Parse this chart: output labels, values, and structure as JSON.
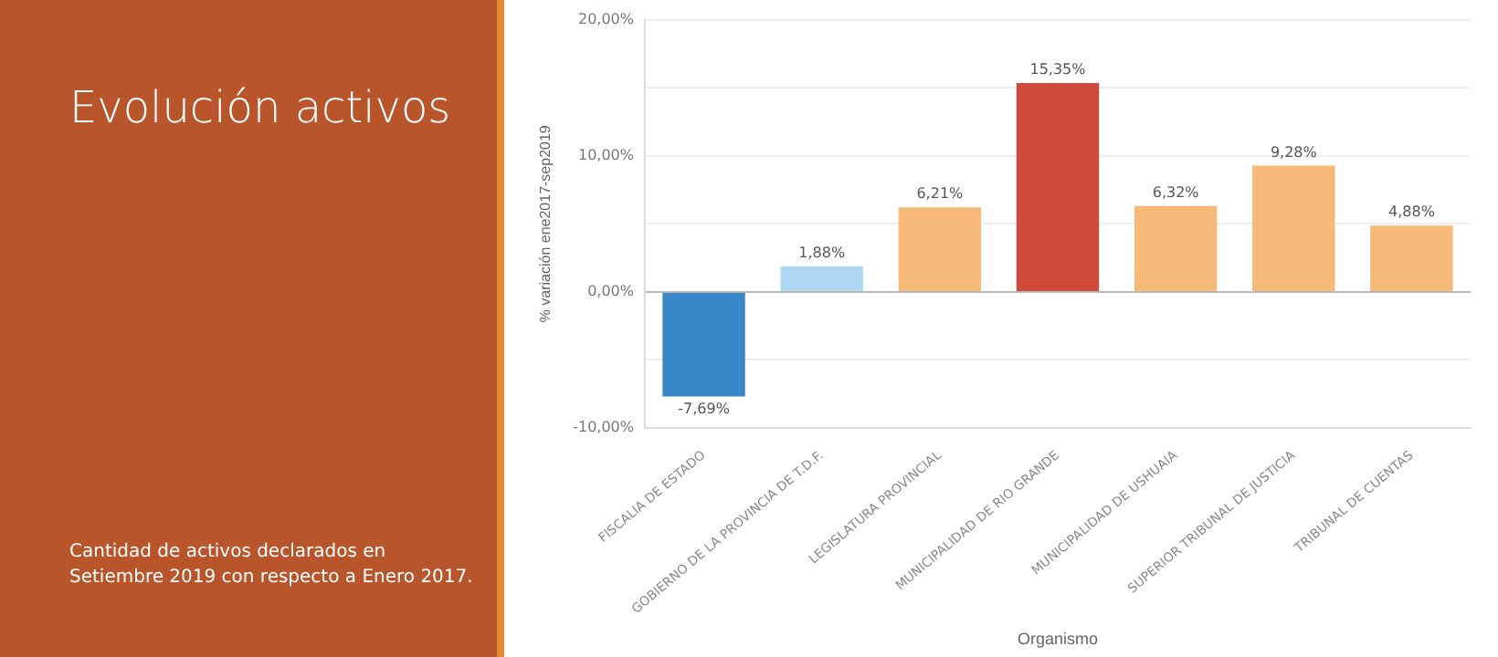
{
  "chart_data": {
    "type": "bar",
    "title": "Evolución activos",
    "annotations": [
      "Cantidad de activos declarados en Setiembre 2019 con respecto a Enero 2017."
    ],
    "xlabel": "Organismo",
    "ylabel": "% variación ene2017-sep2019",
    "categories": [
      "FISCALIA DE ESTADO",
      "GOBIERNO DE LA PROVINCIA DE T.D.F.",
      "LEGISLATURA PROVINCIAL",
      "MUNICIPALIDAD DE RIO GRANDE",
      "MUNICIPALIDAD DE USHUAIA",
      "SUPERIOR TRIBUNAL DE JUSTICIA",
      "TRIBUNAL DE CUENTAS"
    ],
    "values": [
      -7.69,
      1.88,
      6.21,
      15.35,
      6.32,
      9.28,
      4.88
    ],
    "colors": [
      "#3a87c8",
      "#aed8f2",
      "#f6b978",
      "#d04a3a",
      "#f6b978",
      "#f6b978",
      "#f6b978"
    ],
    "value_labels": [
      "-7,69%",
      "1,88%",
      "6,21%",
      "15,35%",
      "6,32%",
      "9,28%",
      "4,88%"
    ],
    "ylim": [
      -10,
      20
    ],
    "yticks": [
      {
        "value": -10,
        "label": "-10,00%"
      },
      {
        "value": -5,
        "label": null
      },
      {
        "value": 0,
        "label": "0,00%"
      },
      {
        "value": 5,
        "label": null
      },
      {
        "value": 10,
        "label": "10,00%"
      },
      {
        "value": 15,
        "label": null
      },
      {
        "value": 20,
        "label": "20,00%"
      }
    ],
    "grid": "y",
    "legend": false
  }
}
